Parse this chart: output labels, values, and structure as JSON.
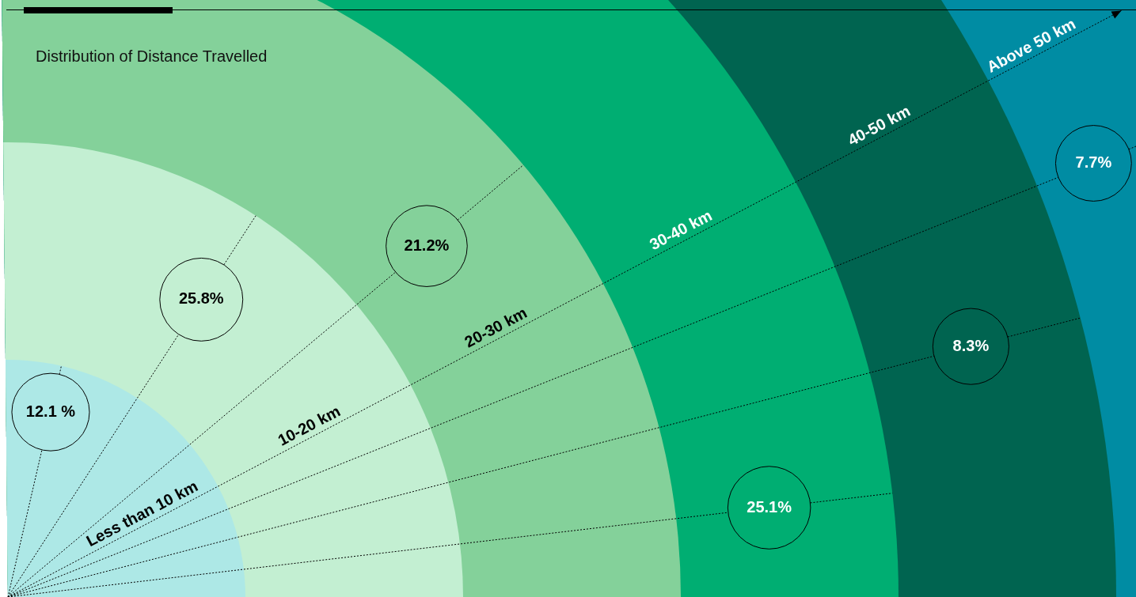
{
  "chart_data": {
    "type": "other",
    "title": "Distribution of Distance Travelled",
    "categories": [
      "Less than 10 km",
      "10-20 km",
      "20-30 km",
      "30-40 km",
      "40-50 km",
      "Above 50 km"
    ],
    "values": [
      12.1,
      25.8,
      21.2,
      25.1,
      8.3,
      7.7
    ],
    "value_labels": [
      "12.1 %",
      "25.8%",
      "21.2%",
      "25.1%",
      "8.3%",
      "7.7%"
    ],
    "colors": [
      "#ade8e6",
      "#c3efd2",
      "#84d19a",
      "#00ae72",
      "#006450",
      "#008ca3"
    ]
  }
}
